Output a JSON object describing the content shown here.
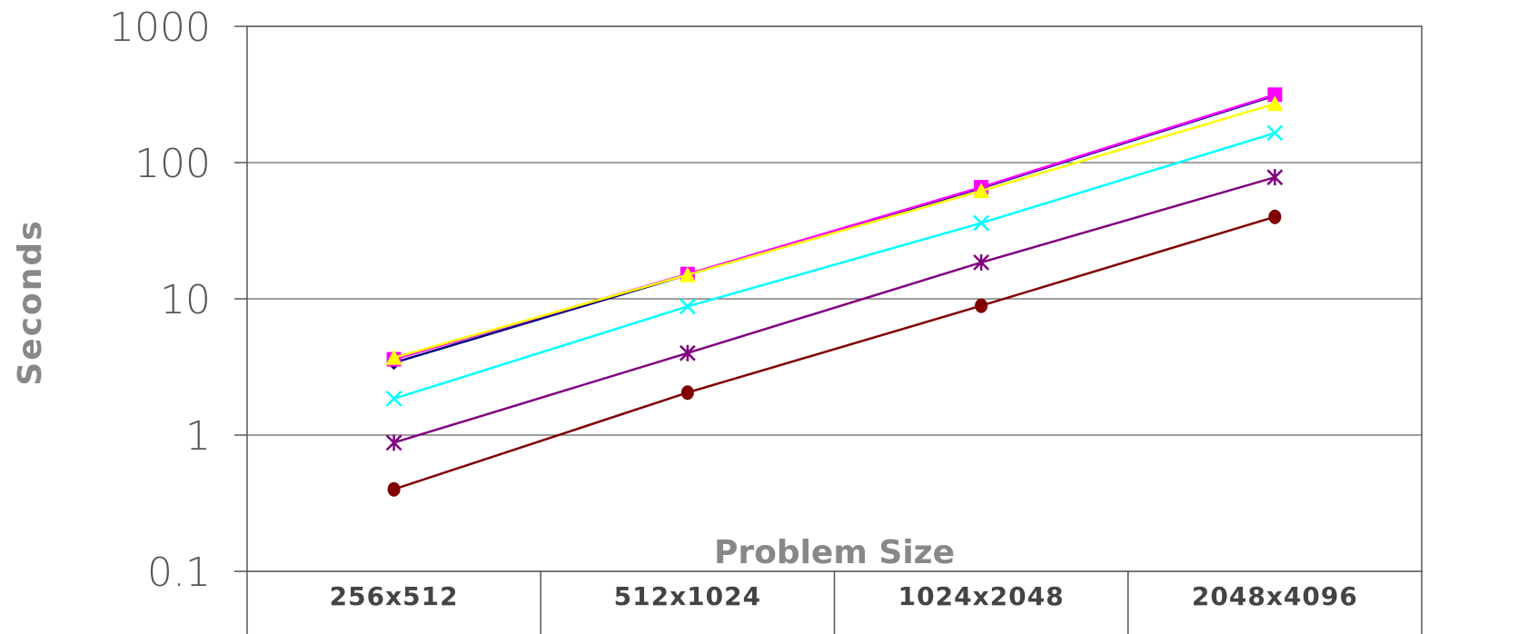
{
  "chart_data": {
    "type": "line",
    "xlabel": "Problem Size",
    "ylabel": "Seconds",
    "yscale": "log",
    "ylim": [
      0.1,
      1000
    ],
    "yticks": [
      "0.1",
      "1",
      "10",
      "100",
      "1000"
    ],
    "categories": [
      "256x512",
      "512x1024",
      "1024x2048",
      "2048x4096"
    ],
    "grid": "horizontal",
    "legend": "none",
    "series": [
      {
        "color": "#000080",
        "marker": "diamond",
        "values": [
          3.4,
          15.0,
          65.0,
          310.0
        ]
      },
      {
        "color": "#ff00ff",
        "marker": "square",
        "values": [
          3.6,
          15.2,
          66.0,
          315.0
        ]
      },
      {
        "color": "#ffff00",
        "marker": "triangle",
        "values": [
          3.7,
          15.0,
          62.0,
          270.0
        ]
      },
      {
        "color": "#00ffff",
        "marker": "x",
        "values": [
          1.85,
          8.8,
          36.0,
          165.0
        ]
      },
      {
        "color": "#800080",
        "marker": "asterisk",
        "values": [
          0.88,
          4.0,
          18.5,
          78.0
        ]
      },
      {
        "color": "#800000",
        "marker": "circle",
        "values": [
          0.4,
          2.05,
          8.9,
          40.0
        ]
      }
    ]
  }
}
